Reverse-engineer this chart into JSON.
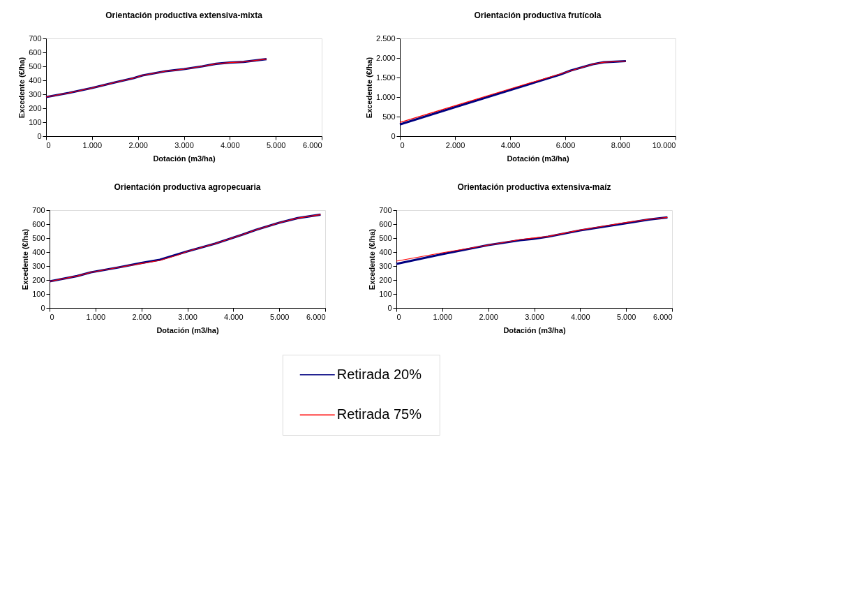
{
  "chart_data": [
    {
      "type": "line",
      "title": "Orientación productiva extensiva-mixta",
      "xlabel": "Dotación (m3/ha)",
      "ylabel": "Excedente (€/ha)",
      "xlim": [
        0,
        6000
      ],
      "xticks": [
        {
          "value": 0,
          "label": "0"
        },
        {
          "value": 1000,
          "label": "1.000"
        },
        {
          "value": 2000,
          "label": "2.000"
        },
        {
          "value": 3000,
          "label": "3.000"
        },
        {
          "value": 4000,
          "label": "4.000"
        },
        {
          "value": 5000,
          "label": "5.000"
        },
        {
          "value": 6000,
          "label": "6.000"
        }
      ],
      "ylim": [
        0,
        700
      ],
      "yticks": [
        0,
        100,
        200,
        300,
        400,
        500,
        600,
        700
      ],
      "grid": false,
      "legend": "bottom",
      "line_style": "solid",
      "marker": "none",
      "series": [
        {
          "name": "Retirada 20%",
          "color": "#000080",
          "x": [
            0,
            500,
            1000,
            1500,
            1900,
            2100,
            2600,
            3000,
            3400,
            3700,
            4000,
            4300,
            4800
          ],
          "values": [
            280,
            310,
            345,
            385,
            415,
            435,
            465,
            480,
            500,
            518,
            527,
            532,
            552
          ]
        },
        {
          "name": "Retirada 75%",
          "color": "#ff0000",
          "x": [
            0,
            500,
            1000,
            1500,
            1900,
            2100,
            2600,
            3000,
            3400,
            3700,
            4000,
            4300,
            4800
          ],
          "values": [
            280,
            310,
            345,
            385,
            415,
            435,
            465,
            480,
            500,
            518,
            527,
            532,
            552
          ]
        }
      ]
    },
    {
      "type": "line",
      "title": "Orientación productiva frutícola",
      "xlabel": "Dotación (m3/ha)",
      "ylabel": "Excedente (€/ha)",
      "xlim": [
        0,
        10000
      ],
      "xticks": [
        {
          "value": 0,
          "label": "0"
        },
        {
          "value": 2000,
          "label": "2.000"
        },
        {
          "value": 4000,
          "label": "4.000"
        },
        {
          "value": 6000,
          "label": "6.000"
        },
        {
          "value": 8000,
          "label": "8.000"
        },
        {
          "value": 10000,
          "label": "10.000"
        }
      ],
      "ylim": [
        0,
        2500
      ],
      "yticks": [
        {
          "value": 0,
          "label": "0"
        },
        {
          "value": 500,
          "label": "500"
        },
        {
          "value": 1000,
          "label": "1.000"
        },
        {
          "value": 1500,
          "label": "1.500"
        },
        {
          "value": 2000,
          "label": "2.000"
        },
        {
          "value": 2500,
          "label": "2.500"
        }
      ],
      "grid": false,
      "line_style": "solid",
      "marker": "none",
      "series": [
        {
          "name": "Retirada 20%",
          "color": "#000080",
          "x": [
            0,
            2000,
            4000,
            5800,
            6200,
            7000,
            7400,
            8200
          ],
          "values": [
            300,
            740,
            1180,
            1570,
            1680,
            1840,
            1890,
            1920
          ]
        },
        {
          "name": "Retirada 75%",
          "color": "#ff0000",
          "x": [
            0,
            2000,
            4000,
            6000,
            7000,
            7400,
            8200
          ],
          "values": [
            350,
            780,
            1210,
            1630,
            1840,
            1890,
            1920
          ]
        }
      ]
    },
    {
      "type": "line",
      "title": "Orientación productiva agropecuaria",
      "xlabel": "Dotación (m3/ha)",
      "ylabel": "Excedente (€/ha)",
      "xlim": [
        0,
        6000
      ],
      "xticks": [
        {
          "value": 0,
          "label": "0"
        },
        {
          "value": 1000,
          "label": "1.000"
        },
        {
          "value": 2000,
          "label": "2.000"
        },
        {
          "value": 3000,
          "label": "3.000"
        },
        {
          "value": 4000,
          "label": "4.000"
        },
        {
          "value": 5000,
          "label": "5.000"
        },
        {
          "value": 6000,
          "label": "6.000"
        }
      ],
      "ylim": [
        0,
        700
      ],
      "yticks": [
        0,
        100,
        200,
        300,
        400,
        500,
        600,
        700
      ],
      "grid": false,
      "line_style": "solid",
      "marker": "none",
      "series": [
        {
          "name": "Retirada 20%",
          "color": "#000080",
          "x": [
            0,
            600,
            900,
            1500,
            2000,
            2400,
            2800,
            3000,
            3600,
            4200,
            4500,
            5000,
            5400,
            5900
          ],
          "values": [
            190,
            228,
            255,
            290,
            322,
            345,
            385,
            405,
            460,
            525,
            560,
            610,
            643,
            668
          ]
        },
        {
          "name": "Retirada 75%",
          "color": "#ff0000",
          "x": [
            0,
            600,
            900,
            1500,
            2000,
            2400,
            2800,
            3000,
            3600,
            4200,
            4500,
            5000,
            5400,
            5900
          ],
          "values": [
            190,
            228,
            255,
            290,
            318,
            340,
            380,
            405,
            460,
            525,
            560,
            610,
            643,
            668
          ]
        }
      ]
    },
    {
      "type": "line",
      "title": "Orientación productiva extensiva-maíz",
      "xlabel": "Dotación (m3/ha)",
      "ylabel": "Excedente (€/ha)",
      "xlim": [
        0,
        6000
      ],
      "xticks": [
        {
          "value": 0,
          "label": "0"
        },
        {
          "value": 1000,
          "label": "1.000"
        },
        {
          "value": 2000,
          "label": "2.000"
        },
        {
          "value": 3000,
          "label": "3.000"
        },
        {
          "value": 4000,
          "label": "4.000"
        },
        {
          "value": 5000,
          "label": "5.000"
        },
        {
          "value": 6000,
          "label": "6.000"
        }
      ],
      "ylim": [
        0,
        700
      ],
      "yticks": [
        0,
        100,
        200,
        300,
        400,
        500,
        600,
        700
      ],
      "grid": false,
      "line_style": "solid",
      "marker": "none",
      "series": [
        {
          "name": "Retirada 20%",
          "color": "#000080",
          "x": [
            0,
            1000,
            2000,
            2700,
            3000,
            3300,
            4000,
            5000,
            5500,
            5900
          ],
          "values": [
            315,
            385,
            450,
            485,
            495,
            510,
            555,
            607,
            633,
            648
          ]
        },
        {
          "name": "Retirada 75%",
          "color": "#ff0000",
          "x": [
            0,
            1000,
            2000,
            2700,
            3300,
            4000,
            4500,
            5000,
            5500,
            5900
          ],
          "values": [
            335,
            395,
            450,
            490,
            512,
            558,
            585,
            612,
            635,
            648
          ]
        }
      ]
    }
  ]
}
